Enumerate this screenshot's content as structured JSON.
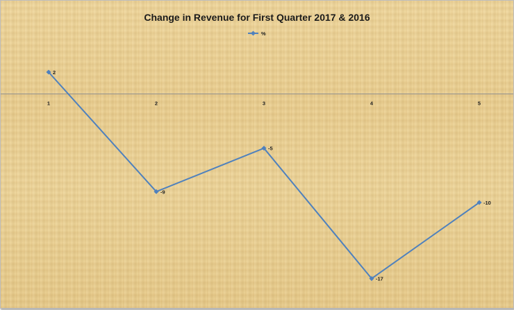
{
  "chart_data": {
    "type": "line",
    "title": "Change in Revenue for First Quarter 2017 & 2016",
    "x": [
      "1",
      "2",
      "3",
      "4",
      "5"
    ],
    "series": [
      {
        "name": "%",
        "values": [
          2,
          -9,
          -5,
          -17,
          -10
        ]
      }
    ],
    "data_labels": [
      "2",
      "-9",
      "-5",
      "-17",
      "-10"
    ],
    "ylim": [
      -19,
      5
    ],
    "xlabel": "",
    "ylabel": "",
    "legend_position": "top",
    "grid": false,
    "colors": {
      "series": "#4f81bd",
      "axis": "#8c8c8c",
      "background": "#efd79c"
    }
  }
}
